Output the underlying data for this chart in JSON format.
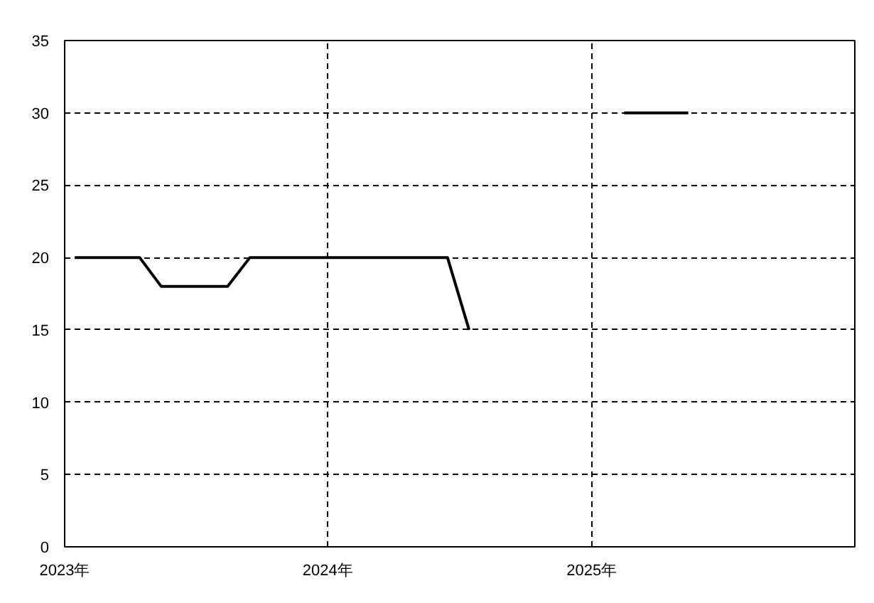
{
  "chart_data": {
    "type": "line",
    "x": [
      "2023-01-15",
      "2023-04-15",
      "2023-05-15",
      "2023-08-15",
      "2023-09-15",
      "2024-06-15",
      "2024-07-15",
      "2024-08-15",
      "2025-02-15",
      "2025-05-15"
    ],
    "series": [
      {
        "color": "#000000",
        "values": [
          20,
          20,
          18,
          18,
          20,
          20,
          15,
          null,
          30,
          30
        ]
      }
    ],
    "xlim": [
      "2023",
      "2026"
    ],
    "xticks": [
      {
        "value": "2023",
        "label": "2023年"
      },
      {
        "value": "2024",
        "label": "2024年"
      },
      {
        "value": "2025",
        "label": "2025年"
      }
    ],
    "ylim": [
      0,
      35
    ],
    "yticks": [
      0,
      5,
      10,
      15,
      20,
      25,
      30,
      35
    ],
    "grid": true,
    "line_style": "solid",
    "marker": "none"
  }
}
